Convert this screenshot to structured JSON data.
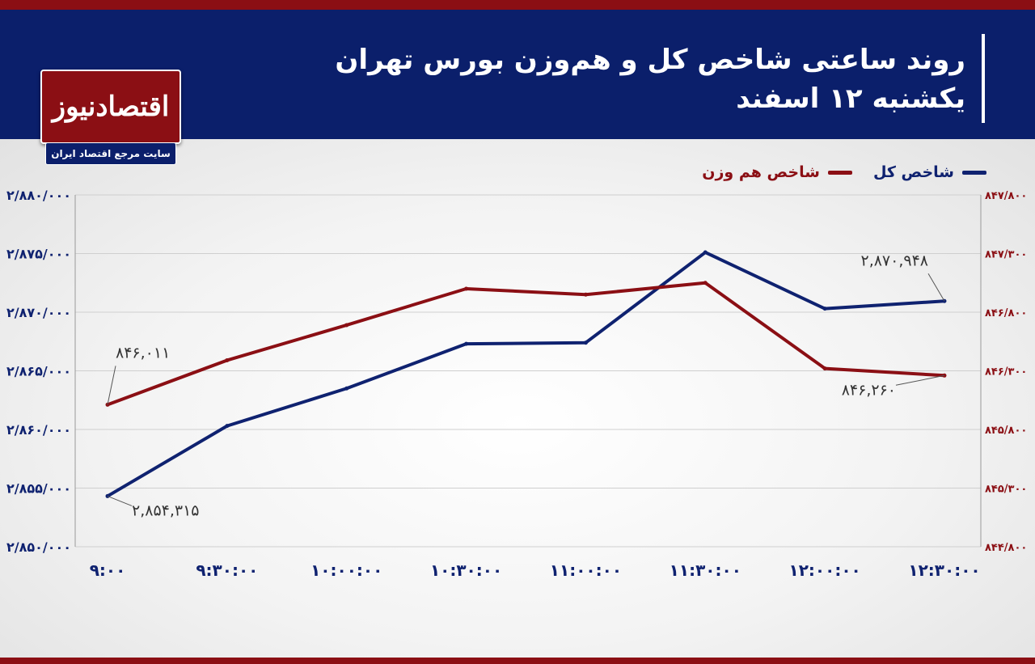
{
  "header": {
    "title_line1": "روند ساعتی شاخص کل و هم‌وزن بورس تهران",
    "title_line2": "یکشنبه ۱۲ اسفند"
  },
  "logo": {
    "text": "اقتصادنیوز",
    "tagline": "سایت مرجع اقتصاد ایران"
  },
  "colors": {
    "header_bg": "#0b1f6b",
    "accent_red": "#8b0f14",
    "series_total": "#0f2270",
    "series_equal": "#8b0f14"
  },
  "chart_data": {
    "type": "line",
    "title": "روند ساعتی شاخص کل و هم‌وزن بورس تهران",
    "subtitle": "یکشنبه ۱۲ اسفند",
    "categories": [
      "۹:۰۰",
      "۹:۳۰:۰۰",
      "۱۰:۰۰:۰۰",
      "۱۰:۳۰:۰۰",
      "۱۱:۰۰:۰۰",
      "۱۱:۳۰:۰۰",
      "۱۲:۰۰:۰۰",
      "۱۲:۳۰:۰۰"
    ],
    "grid": true,
    "legend_position": "top-right",
    "left_axis": {
      "min": 2850000,
      "max": 2880000,
      "ticks": [
        2850000,
        2855000,
        2860000,
        2865000,
        2870000,
        2875000,
        2880000
      ],
      "tick_labels": [
        "۲/۸۵۰/۰۰۰",
        "۲/۸۵۵/۰۰۰",
        "۲/۸۶۰/۰۰۰",
        "۲/۸۶۵/۰۰۰",
        "۲/۸۷۰/۰۰۰",
        "۲/۸۷۵/۰۰۰",
        "۲/۸۸۰/۰۰۰"
      ]
    },
    "right_axis": {
      "min": 844800,
      "max": 847800,
      "ticks": [
        844800,
        845300,
        845800,
        846300,
        846800,
        847300,
        847800
      ],
      "tick_labels": [
        "۸۴۴/۸۰۰",
        "۸۴۵/۳۰۰",
        "۸۴۵/۸۰۰",
        "۸۴۶/۳۰۰",
        "۸۴۶/۸۰۰",
        "۸۴۷/۳۰۰",
        "۸۴۷/۸۰۰"
      ]
    },
    "series": [
      {
        "name": "شاخص کل",
        "axis": "left",
        "values": [
          2854315,
          2860300,
          2863500,
          2867300,
          2867400,
          2875100,
          2870300,
          2870948
        ],
        "annotations": [
          {
            "index": 0,
            "label": "۲,۸۵۴,۳۱۵"
          },
          {
            "index": 7,
            "label": "۲,۸۷۰,۹۴۸"
          }
        ]
      },
      {
        "name": "شاخص هم وزن",
        "axis": "right",
        "values": [
          846011,
          846390,
          846690,
          847000,
          846950,
          847050,
          846320,
          846260
        ],
        "annotations": [
          {
            "index": 0,
            "label": "۸۴۶,۰۱۱"
          },
          {
            "index": 7,
            "label": "۸۴۶,۲۶۰"
          }
        ]
      }
    ]
  }
}
